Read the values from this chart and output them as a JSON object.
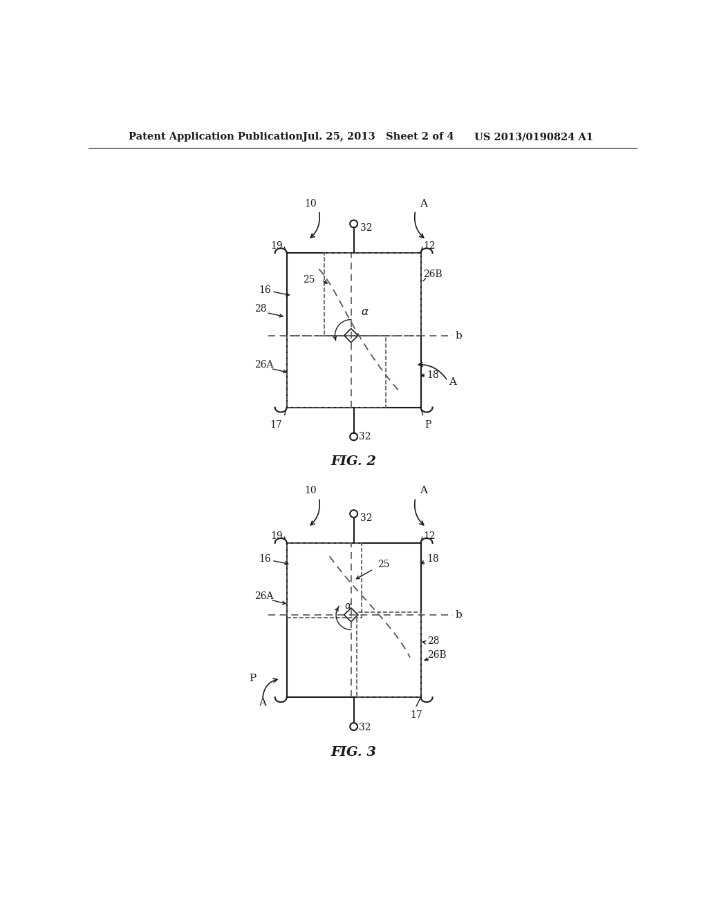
{
  "bg_color": "#ffffff",
  "line_color": "#1a1a1a",
  "dashed_color": "#555555",
  "header_left": "Patent Application Publication",
  "header_mid": "Jul. 25, 2013   Sheet 2 of 4",
  "header_right": "US 2013/0190824 A1",
  "fig2_label": "FIG. 2",
  "fig3_label": "FIG. 3"
}
